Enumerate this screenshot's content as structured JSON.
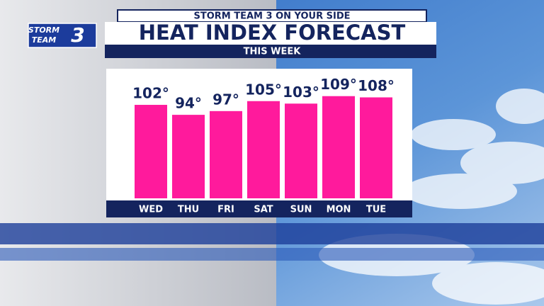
{
  "header": {
    "banner": "STORM TEAM 3 ON YOUR SIDE",
    "logo_lines": [
      "STORM",
      "TEAM"
    ],
    "logo_number": "3"
  },
  "chart_data": {
    "type": "bar",
    "title": "HEAT INDEX FORECAST",
    "subtitle": "THIS WEEK",
    "categories": [
      "WED",
      "THU",
      "FRI",
      "SAT",
      "SUN",
      "MON",
      "TUE"
    ],
    "values": [
      102,
      94,
      97,
      105,
      103,
      109,
      108
    ],
    "value_labels": [
      "102°",
      "94°",
      "97°",
      "105°",
      "103°",
      "109°",
      "108°"
    ],
    "color": "#ff1a9c",
    "ylim": [
      27,
      131
    ]
  }
}
